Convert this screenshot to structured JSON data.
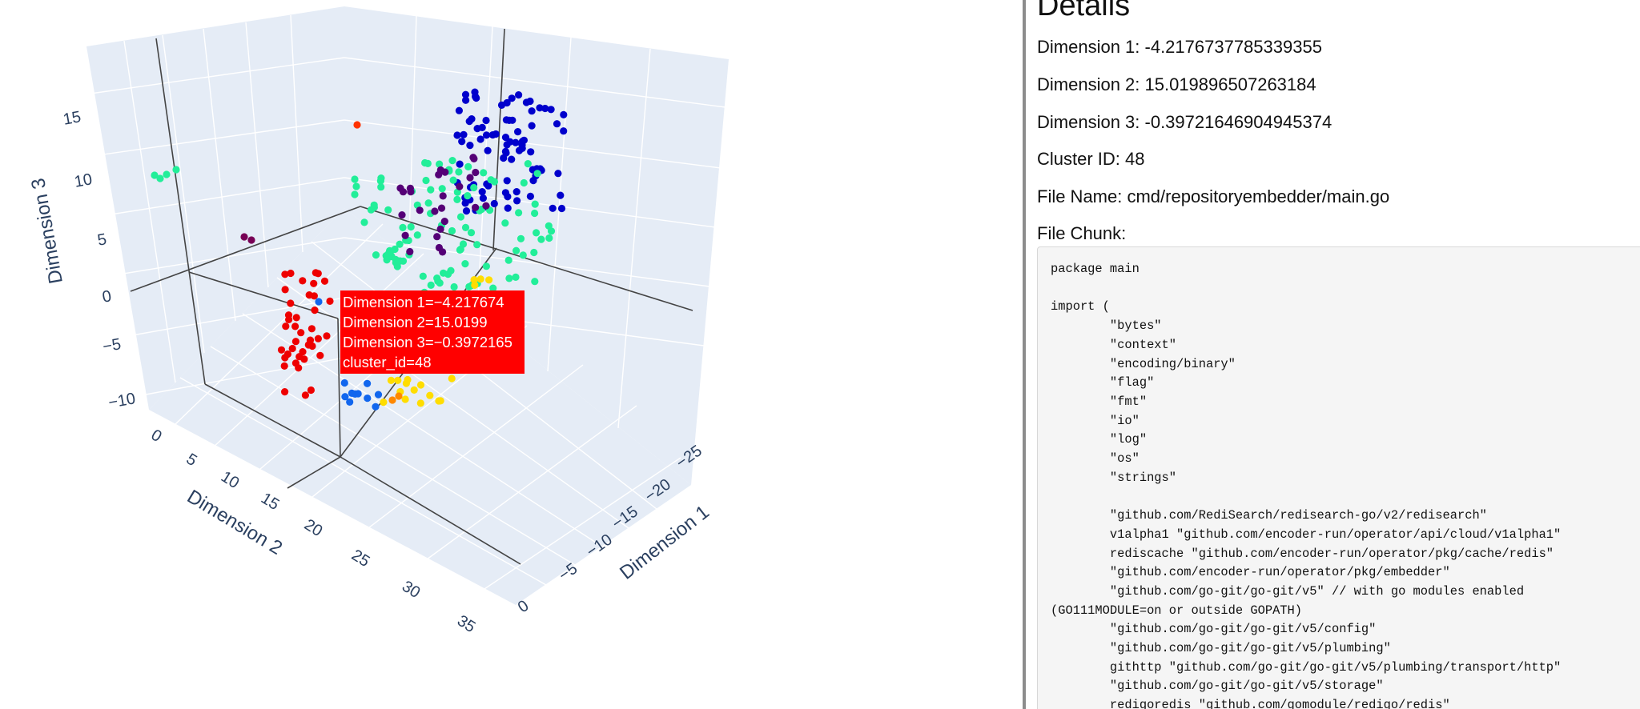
{
  "details": {
    "heading": "Details",
    "dim1": "Dimension 1: -4.2176737785339355",
    "dim2": "Dimension 2: 15.019896507263184",
    "dim3": "Dimension 3: -0.39721646904945374",
    "cluster": "Cluster ID: 48",
    "file": "File Name: cmd/repositoryembedder/main.go",
    "chunk_label": "File Chunk:",
    "chunk": "package main\n\nimport (\n        \"bytes\"\n        \"context\"\n        \"encoding/binary\"\n        \"flag\"\n        \"fmt\"\n        \"io\"\n        \"log\"\n        \"os\"\n        \"strings\"\n\n        \"github.com/RediSearch/redisearch-go/v2/redisearch\"\n        v1alpha1 \"github.com/encoder-run/operator/api/cloud/v1alpha1\"\n        rediscache \"github.com/encoder-run/operator/pkg/cache/redis\"\n        \"github.com/encoder-run/operator/pkg/embedder\"\n        \"github.com/go-git/go-git/v5\" // with go modules enabled (GO111MODULE=on or outside GOPATH)\n        \"github.com/go-git/go-git/v5/config\"\n        \"github.com/go-git/go-git/v5/plumbing\"\n        githttp \"github.com/go-git/go-git/v5/plumbing/transport/http\"\n        \"github.com/go-git/go-git/v5/storage\"\n        redigoredis \"github.com/gomodule/redigo/redis\""
  },
  "tooltip": {
    "line1": "Dimension 1=−4.217674",
    "line2": "Dimension 2=15.0199",
    "line3": "Dimension 3=−0.3972165",
    "line4": "cluster_id=48"
  },
  "chart_data": {
    "type": "scatter3d",
    "axes": {
      "x": {
        "title": "Dimension 1",
        "ticks": [
          "0",
          "−5",
          "−10",
          "−15",
          "−20",
          "−25"
        ]
      },
      "y": {
        "title": "Dimension 2",
        "ticks": [
          "0",
          "5",
          "10",
          "15",
          "20",
          "25",
          "30",
          "35"
        ]
      },
      "z": {
        "title": "Dimension 3",
        "ticks": [
          "−10",
          "−5",
          "0",
          "5",
          "10",
          "15"
        ]
      }
    },
    "colors": {
      "red": "#ee0000",
      "orange_red": "#ff3300",
      "mint": "#22ee99",
      "purple": "#550077",
      "blue": "#0000cc",
      "light_blue": "#1166ee",
      "yellow": "#ffdd00",
      "orange": "#ff8800",
      "plum": "#770055"
    },
    "highlighted_point": {
      "x": -4.2176737785339355,
      "y": 15.019896507263184,
      "z": -0.39721646904945374,
      "cluster_id": 48
    }
  }
}
